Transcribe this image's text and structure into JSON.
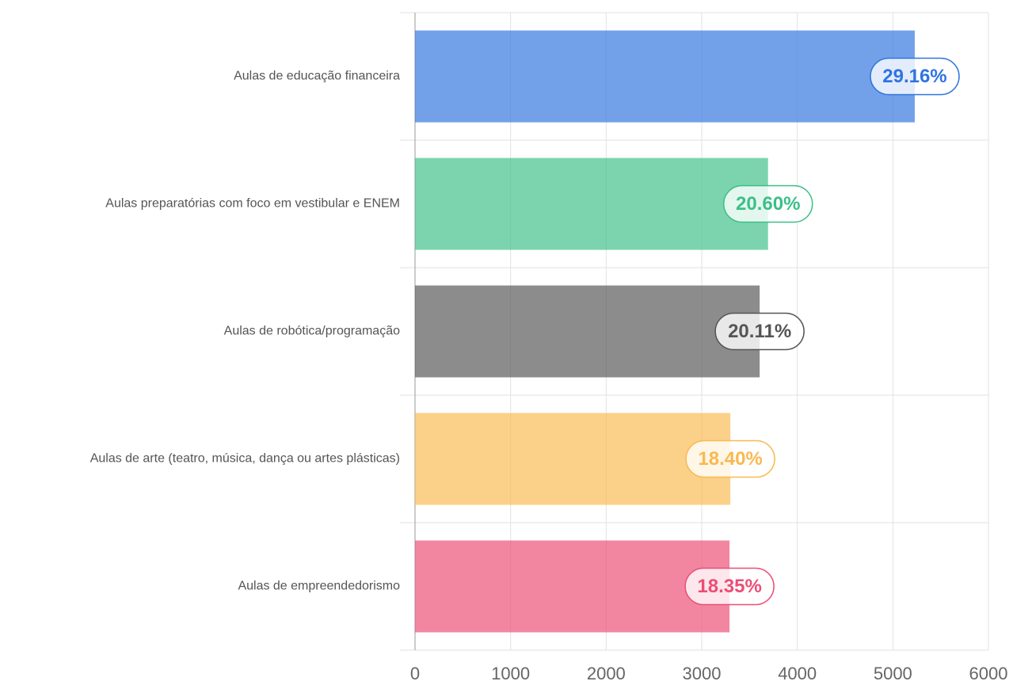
{
  "chart_data": {
    "type": "bar",
    "orientation": "horizontal",
    "categories": [
      "Aulas de educação financeira",
      "Aulas preparatórias com foco em vestibular e ENEM",
      "Aulas de robótica/programação",
      "Aulas de arte (teatro, música, dança ou artes plásticas)",
      "Aulas de empreendedorismo"
    ],
    "values": [
      5229,
      3694,
      3606,
      3299,
      3291
    ],
    "percent_labels": [
      "29.16%",
      "20.60%",
      "20.11%",
      "18.40%",
      "18.35%"
    ],
    "colors": [
      "#2f74e0",
      "#3cbf87",
      "#555555",
      "#f9b950",
      "#ec4d75"
    ],
    "xlim": [
      0,
      6000
    ],
    "xticks": [
      0,
      1000,
      2000,
      3000,
      4000,
      5000,
      6000
    ],
    "grid": true
  }
}
